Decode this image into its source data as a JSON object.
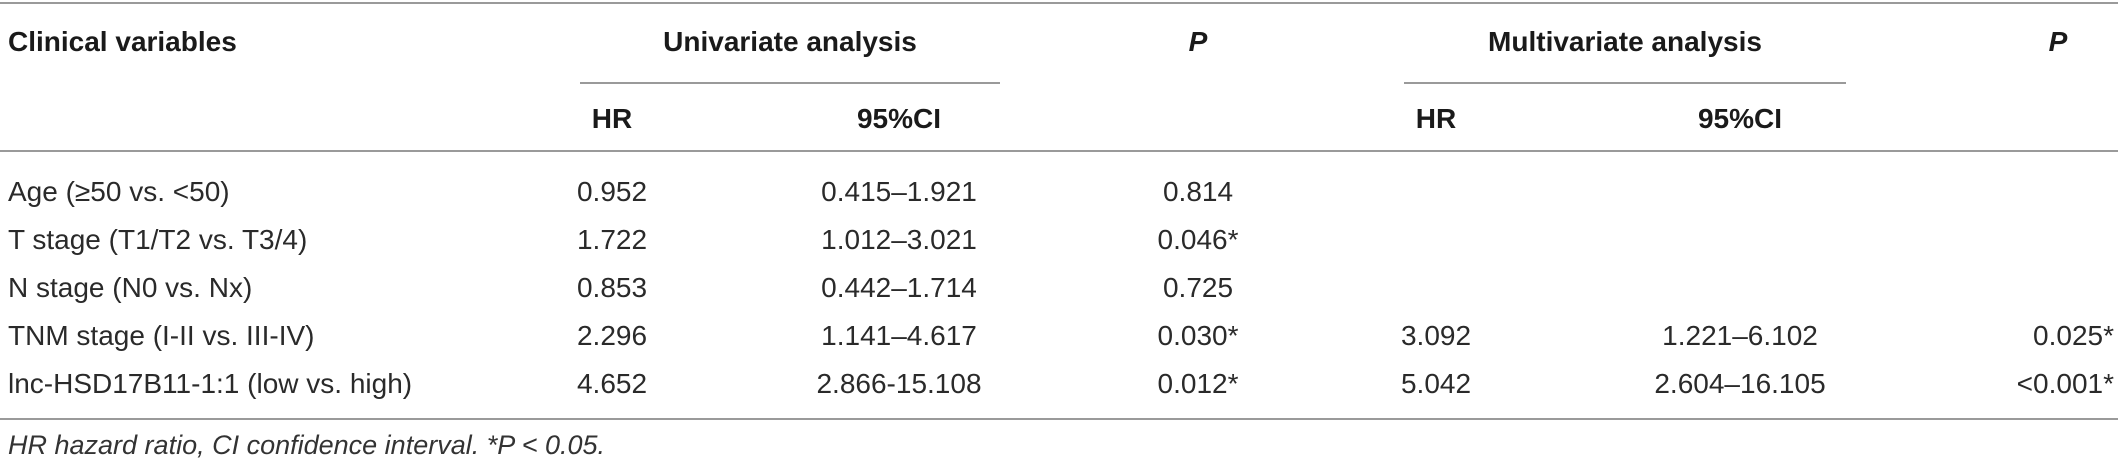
{
  "table": {
    "headers": {
      "clinical_variables": "Clinical variables",
      "univariate": "Univariate analysis",
      "p1": "P",
      "multivariate": "Multivariate analysis",
      "p2": "P",
      "hr_uni": "HR",
      "ci_uni": "95%CI",
      "hr_multi": "HR",
      "ci_multi": "95%CI"
    },
    "rows": [
      {
        "variable": "Age (≥50 vs. <50)",
        "hr_uni": "0.952",
        "ci_uni": "0.415–1.921",
        "p_uni": "0.814",
        "hr_multi": "",
        "ci_multi": "",
        "p_multi": ""
      },
      {
        "variable": "T stage (T1/T2 vs. T3/4)",
        "hr_uni": "1.722",
        "ci_uni": "1.012–3.021",
        "p_uni": "0.046*",
        "hr_multi": "",
        "ci_multi": "",
        "p_multi": ""
      },
      {
        "variable": "N stage (N0 vs. Nx)",
        "hr_uni": "0.853",
        "ci_uni": "0.442–1.714",
        "p_uni": "0.725",
        "hr_multi": "",
        "ci_multi": "",
        "p_multi": ""
      },
      {
        "variable": "TNM stage (I-II vs. III-IV)",
        "hr_uni": "2.296",
        "ci_uni": "1.141–4.617",
        "p_uni": "0.030*",
        "hr_multi": "3.092",
        "ci_multi": "1.221–6.102",
        "p_multi": "0.025*"
      },
      {
        "variable": "lnc-HSD17B11-1:1 (low vs. high)",
        "hr_uni": "4.652",
        "ci_uni": "2.866-15.108",
        "p_uni": "0.012*",
        "hr_multi": "5.042",
        "ci_multi": "2.604–16.105",
        "p_multi": "<0.001*"
      }
    ],
    "footnote": "HR hazard ratio, CI confidence interval. *P < 0.05."
  }
}
